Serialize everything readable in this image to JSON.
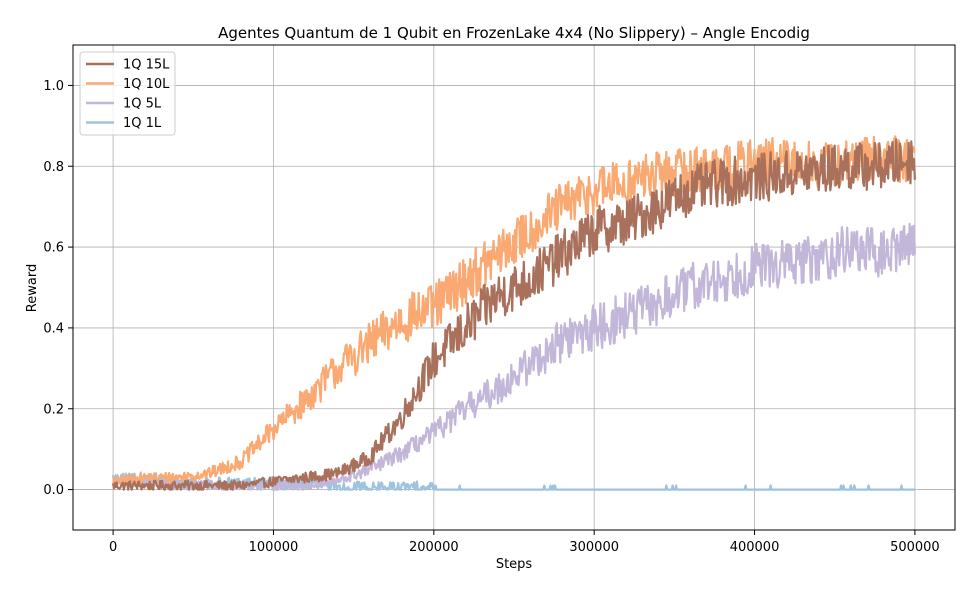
{
  "chart_data": {
    "type": "line",
    "title": "Agentes Quantum de 1 Qubit en FrozenLake 4x4 (No Slippery) – Angle Encodig",
    "xlabel": "Steps",
    "ylabel": "Reward",
    "xlim": [
      -25000,
      525000
    ],
    "ylim": [
      -0.1,
      1.1
    ],
    "xticks": [
      0,
      100000,
      200000,
      300000,
      400000,
      500000
    ],
    "xtick_labels": [
      "0",
      "100000",
      "200000",
      "300000",
      "400000",
      "500000"
    ],
    "yticks": [
      0.0,
      0.2,
      0.4,
      0.6,
      0.8,
      1.0
    ],
    "ytick_labels": [
      "0.0",
      "0.2",
      "0.4",
      "0.6",
      "0.8",
      "1.0"
    ],
    "grid": true,
    "legend_position": "top-left",
    "x": [
      0,
      20000,
      40000,
      60000,
      80000,
      100000,
      120000,
      140000,
      160000,
      180000,
      200000,
      220000,
      240000,
      260000,
      280000,
      300000,
      320000,
      340000,
      360000,
      380000,
      400000,
      420000,
      440000,
      460000,
      480000,
      500000
    ],
    "series": [
      {
        "name": "1Q 15L",
        "color": "#a9705c",
        "values": [
          0.01,
          0.01,
          0.01,
          0.01,
          0.01,
          0.02,
          0.03,
          0.04,
          0.08,
          0.18,
          0.32,
          0.4,
          0.48,
          0.52,
          0.58,
          0.64,
          0.66,
          0.7,
          0.74,
          0.76,
          0.77,
          0.78,
          0.79,
          0.8,
          0.8,
          0.82
        ]
      },
      {
        "name": "1Q 10L",
        "color": "#f9a971",
        "values": [
          0.02,
          0.03,
          0.03,
          0.04,
          0.07,
          0.15,
          0.22,
          0.3,
          0.36,
          0.42,
          0.45,
          0.52,
          0.58,
          0.64,
          0.7,
          0.74,
          0.76,
          0.78,
          0.79,
          0.8,
          0.81,
          0.81,
          0.8,
          0.81,
          0.82,
          0.82
        ]
      },
      {
        "name": "1Q  5L",
        "color": "#c2b6d9",
        "values": [
          0.02,
          0.02,
          0.01,
          0.01,
          0.01,
          0.01,
          0.01,
          0.02,
          0.05,
          0.09,
          0.14,
          0.2,
          0.25,
          0.31,
          0.37,
          0.4,
          0.43,
          0.46,
          0.5,
          0.52,
          0.55,
          0.56,
          0.57,
          0.6,
          0.58,
          0.62
        ]
      },
      {
        "name": "1Q  1L",
        "color": "#9dc3e0",
        "values": [
          0.02,
          0.02,
          0.01,
          0.01,
          0.01,
          0.01,
          0.01,
          0.0,
          0.0,
          0.0,
          0.0,
          0.0,
          0.0,
          0.0,
          0.0,
          0.0,
          0.0,
          0.0,
          0.0,
          0.0,
          0.0,
          0.0,
          0.0,
          0.0,
          0.0,
          0.0
        ]
      }
    ]
  }
}
